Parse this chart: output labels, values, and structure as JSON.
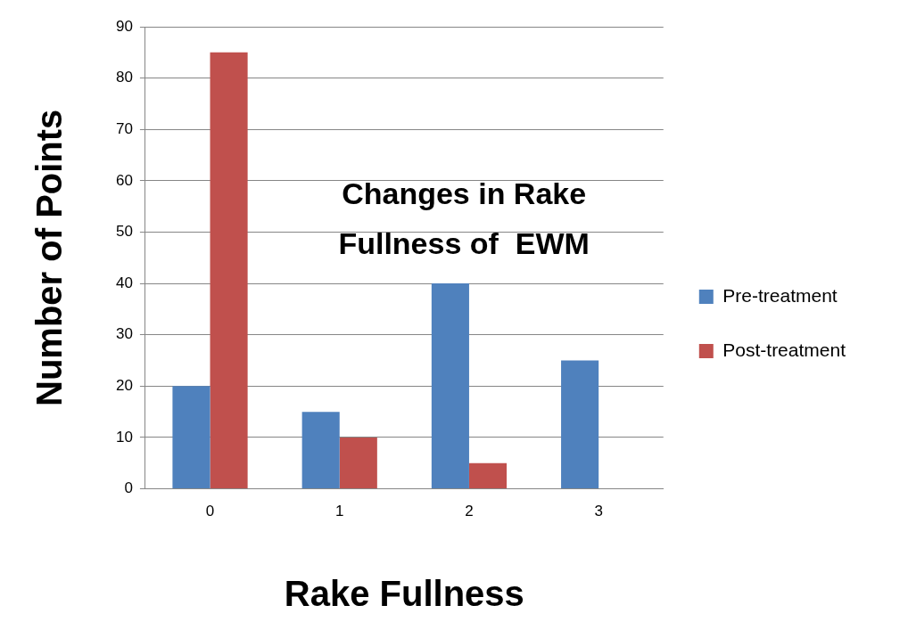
{
  "chart_data": {
    "type": "bar",
    "title": "Changes in Rake Fullness of  EWM",
    "xlabel": "Rake Fullness",
    "ylabel": "Number of Points",
    "categories": [
      "0",
      "1",
      "2",
      "3"
    ],
    "series": [
      {
        "name": "Pre-treatment",
        "color": "#4f81bd",
        "values": [
          20,
          15,
          40,
          25
        ]
      },
      {
        "name": "Post-treatment",
        "color": "#c0504d",
        "values": [
          85,
          10,
          5,
          0
        ]
      }
    ],
    "ylim": [
      0,
      90
    ],
    "yticks": [
      0,
      10,
      20,
      30,
      40,
      50,
      60,
      70,
      80,
      90
    ],
    "grid": "y",
    "legend": "right"
  }
}
